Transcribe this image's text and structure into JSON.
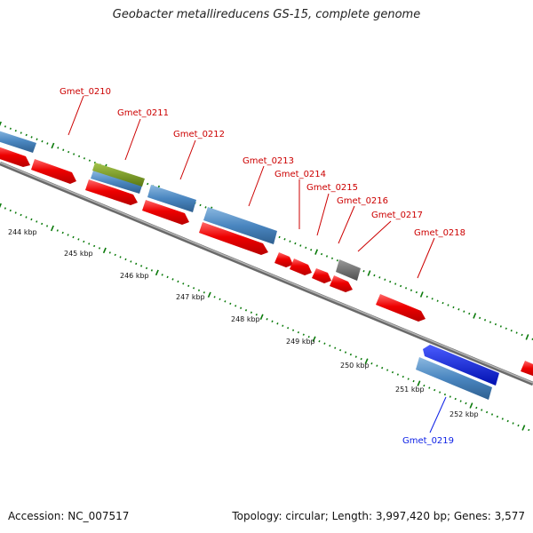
{
  "title": "Geobacter metallireducens GS-15, complete genome",
  "footer": {
    "accession": "Accession: NC_007517",
    "summary": "Topology: circular; Length: 3,997,420 bp; Genes: 3,577"
  },
  "colors": {
    "forward_cds": "#ee0000",
    "reverse_cds": "#4a86c0",
    "gene_other": "#6b8a1e",
    "gray_feature": "#666666",
    "highlight": "#0a1ee6",
    "label_red": "#cc0000",
    "label_blue": "#0a1ee6",
    "backbone": "#8a8a8a",
    "ticks": "#0a7a0a"
  },
  "ticks": [
    {
      "label": "244 kbp"
    },
    {
      "label": "245 kbp"
    },
    {
      "label": "246 kbp"
    },
    {
      "label": "247 kbp"
    },
    {
      "label": "248 kbp"
    },
    {
      "label": "249 kbp"
    },
    {
      "label": "250 kbp"
    },
    {
      "label": "251 kbp"
    },
    {
      "label": "252 kbp"
    }
  ],
  "gene_labels": [
    {
      "id": "Gmet_0210",
      "color": "red"
    },
    {
      "id": "Gmet_0211",
      "color": "red"
    },
    {
      "id": "Gmet_0212",
      "color": "red"
    },
    {
      "id": "Gmet_0213",
      "color": "red"
    },
    {
      "id": "Gmet_0214",
      "color": "red"
    },
    {
      "id": "Gmet_0215",
      "color": "red"
    },
    {
      "id": "Gmet_0216",
      "color": "red"
    },
    {
      "id": "Gmet_0217",
      "color": "red"
    },
    {
      "id": "Gmet_0218",
      "color": "red"
    },
    {
      "id": "Gmet_0219",
      "color": "blue"
    }
  ]
}
